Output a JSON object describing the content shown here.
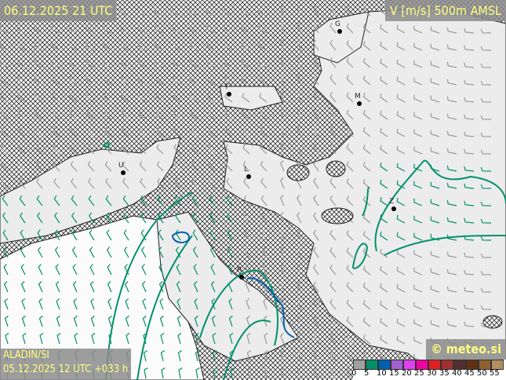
{
  "header": {
    "valid_time": "06.12.2025 21 UTC",
    "parameter": "V [m/s] 500m AMSL"
  },
  "footer": {
    "model": "ALADIN/SI",
    "run": "05.12.2025 12 UTC +033 h",
    "copyright": "© meteo.si"
  },
  "legend": {
    "colors": [
      "#a0a0a0",
      "#00906a",
      "#0060b0",
      "#a060d0",
      "#e040f0",
      "#f000a0",
      "#e02020",
      "#a03030",
      "#503030",
      "#603010",
      "#906030",
      "#b09060"
    ],
    "ticks": [
      "0",
      "5",
      "10",
      "15",
      "20",
      "25",
      "30",
      "35",
      "40",
      "45",
      "50",
      "55"
    ]
  },
  "cities": [
    {
      "name": "G",
      "dot": [
        433,
        40
      ]
    },
    {
      "name": "T",
      "dot": [
        292,
        120
      ]
    },
    {
      "name": "M",
      "dot": [
        458,
        132
      ]
    },
    {
      "name": "U",
      "dot": [
        157,
        220
      ]
    },
    {
      "name": "L",
      "dot": [
        317,
        225
      ]
    },
    {
      "name": "Z",
      "dot": [
        502,
        266
      ]
    },
    {
      "name": "R",
      "dot": [
        308,
        353
      ]
    }
  ],
  "colors": {
    "contour_5ms": "#00906a",
    "contour_10ms": "#0060b0",
    "label_text": "#ffff80"
  }
}
